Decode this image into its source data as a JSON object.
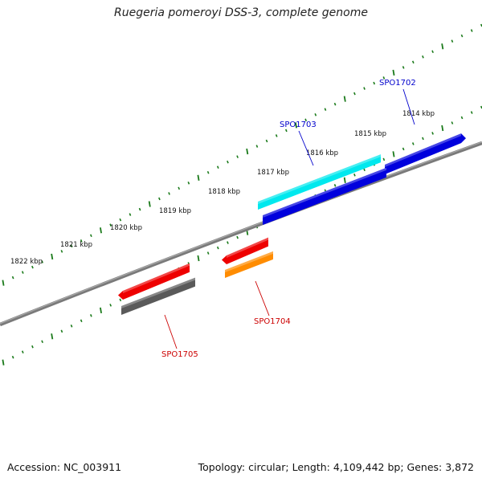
{
  "title": "Ruegeria pomeroyi DSS-3, complete genome",
  "footer": {
    "accession": "Accession: NC_003911",
    "summary": "Topology: circular; Length: 4,109,442 bp; Genes: 3,872"
  },
  "ticks": [
    {
      "label": "1814 kbp"
    },
    {
      "label": "1815 kbp"
    },
    {
      "label": "1816 kbp"
    },
    {
      "label": "1817 kbp"
    },
    {
      "label": "1818 kbp"
    },
    {
      "label": "1819 kbp"
    },
    {
      "label": "1820 kbp"
    },
    {
      "label": "1821 kbp"
    },
    {
      "label": "1822 kbp"
    }
  ],
  "genes": [
    {
      "label": "SPO1702",
      "strand": "plus",
      "color": "#0000dd"
    },
    {
      "label": "SPO1703",
      "strand": "plus",
      "color": "#00e8ee"
    },
    {
      "label": "SPO1704",
      "strand": "minus",
      "color": "#ff8c00"
    },
    {
      "label": "SPO1705",
      "strand": "minus",
      "color": "#5a5a5a"
    }
  ],
  "colors": {
    "backbone": "#7a7a7a",
    "tick": "#1a7a1a",
    "label_plus": "#0000cc",
    "label_minus": "#cc0000",
    "red_feature": "#ee0000",
    "blue_feature": "#0000dd"
  }
}
